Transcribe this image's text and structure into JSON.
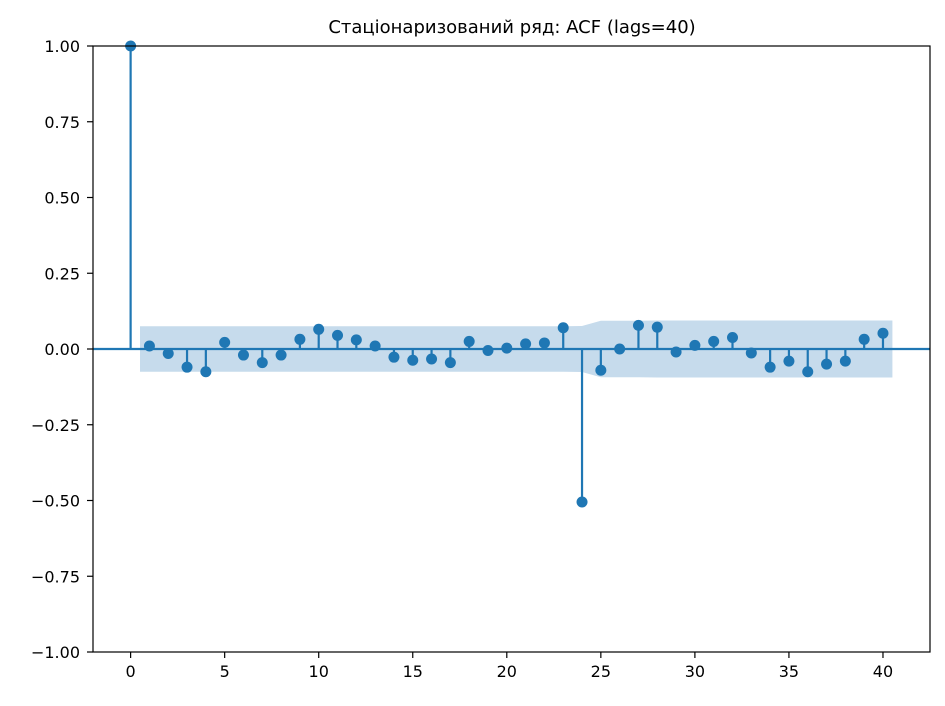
{
  "chart_data": {
    "type": "stem",
    "title": "Стаціонаризований ряд: ACF (lags=40)",
    "xlabel": "",
    "ylabel": "",
    "xlim": [
      -2,
      42.5
    ],
    "ylim": [
      -1.0,
      1.0
    ],
    "xticks": [
      0,
      5,
      10,
      15,
      20,
      25,
      30,
      35,
      40
    ],
    "xtick_labels": [
      "0",
      "5",
      "10",
      "15",
      "20",
      "25",
      "30",
      "35",
      "40"
    ],
    "yticks": [
      1.0,
      0.75,
      0.5,
      0.25,
      0.0,
      -0.25,
      -0.5,
      -0.75,
      -1.0
    ],
    "ytick_labels": [
      "1.00",
      "0.75",
      "0.50",
      "0.25",
      "0.00",
      "−0.25",
      "−0.50",
      "−0.75",
      "−1.00"
    ],
    "color": "#1f77b4",
    "band_color": "#c6dbec",
    "lags": [
      0,
      1,
      2,
      3,
      4,
      5,
      6,
      7,
      8,
      9,
      10,
      11,
      12,
      13,
      14,
      15,
      16,
      17,
      18,
      19,
      20,
      21,
      22,
      23,
      24,
      25,
      26,
      27,
      28,
      29,
      30,
      31,
      32,
      33,
      34,
      35,
      36,
      37,
      38,
      39,
      40
    ],
    "acf": [
      1.0,
      0.01,
      -0.015,
      -0.06,
      -0.075,
      0.022,
      -0.02,
      -0.045,
      -0.02,
      0.032,
      0.065,
      0.045,
      0.03,
      0.01,
      -0.027,
      -0.037,
      -0.033,
      -0.045,
      0.025,
      -0.005,
      0.003,
      0.017,
      0.02,
      0.07,
      -0.505,
      -0.07,
      0.0,
      0.078,
      0.072,
      -0.01,
      0.012,
      0.025,
      0.038,
      -0.013,
      -0.06,
      -0.04,
      -0.075,
      -0.05,
      -0.04,
      0.032,
      0.052
    ],
    "confint_upper": [
      0.075,
      0.075,
      0.075,
      0.075,
      0.075,
      0.075,
      0.075,
      0.075,
      0.075,
      0.075,
      0.075,
      0.075,
      0.075,
      0.075,
      0.075,
      0.075,
      0.075,
      0.075,
      0.075,
      0.075,
      0.075,
      0.075,
      0.075,
      0.076,
      0.093,
      0.093,
      0.093,
      0.094,
      0.094,
      0.094,
      0.094,
      0.094,
      0.094,
      0.094,
      0.094,
      0.094,
      0.094,
      0.094,
      0.094,
      0.094
    ],
    "grid": false,
    "legend": "none"
  }
}
